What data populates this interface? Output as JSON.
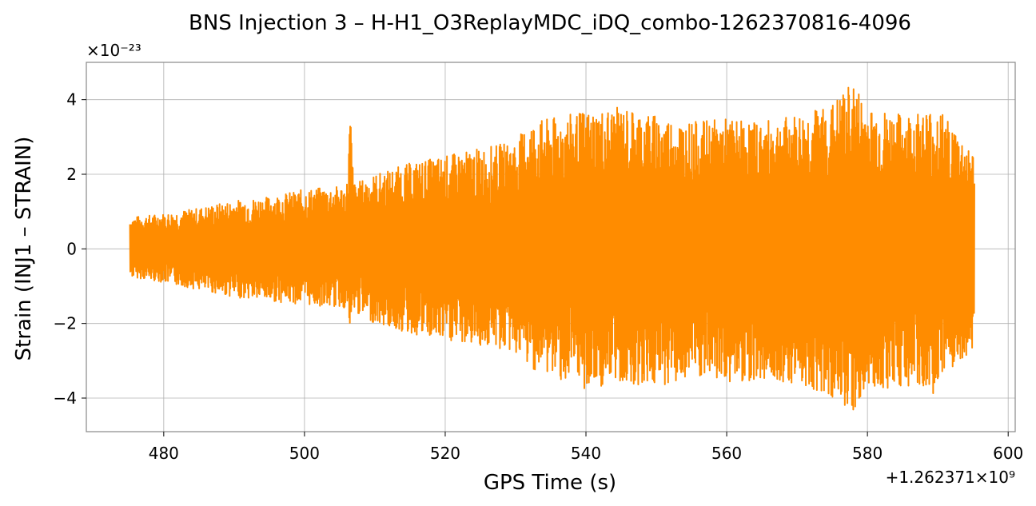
{
  "chart_data": {
    "type": "line",
    "title": "BNS Injection 3 – H-H1_O3ReplayMDC_iDQ_combo-1262370816-4096",
    "xlabel": "GPS Time (s)",
    "ylabel": "Strain (INJ1 – STRAIN)",
    "y_multiplier_label": "×10⁻²³",
    "x_offset_label": "+1.262371×10⁹",
    "xlim": [
      469,
      601
    ],
    "ylim": [
      -4.9,
      5.0
    ],
    "x_ticks": [
      480,
      500,
      520,
      540,
      560,
      580,
      600
    ],
    "x_tick_labels": [
      "480",
      "500",
      "520",
      "540",
      "560",
      "580",
      "600"
    ],
    "y_ticks": [
      -4,
      -2,
      0,
      2,
      4
    ],
    "y_tick_labels": [
      "−4",
      "−2",
      "0",
      "2",
      "4"
    ],
    "grid": true,
    "series": [
      {
        "color": "#ff8c00",
        "x_range": [
          475.2,
          595.2
        ],
        "envelope": {
          "x": [
            475.2,
            480,
            485,
            490,
            495,
            500,
            506,
            506.5,
            507,
            510,
            515,
            520,
            525,
            530,
            532,
            535,
            540,
            545,
            550,
            555,
            560,
            565,
            570,
            575,
            578,
            580,
            585,
            590,
            595.2
          ],
          "upper": [
            0.85,
            0.95,
            1.1,
            1.3,
            1.4,
            1.6,
            1.7,
            3.8,
            1.75,
            2.0,
            2.3,
            2.5,
            2.7,
            2.9,
            3.4,
            3.5,
            3.7,
            3.8,
            3.6,
            3.4,
            3.5,
            3.4,
            3.6,
            3.9,
            4.5,
            3.8,
            3.6,
            3.8,
            2.55
          ],
          "lower": [
            -0.75,
            -0.9,
            -1.1,
            -1.3,
            -1.4,
            -1.5,
            -1.6,
            -2.3,
            -1.7,
            -2.0,
            -2.3,
            -2.5,
            -2.6,
            -2.8,
            -3.2,
            -3.4,
            -3.8,
            -3.6,
            -3.7,
            -3.5,
            -3.6,
            -3.5,
            -3.6,
            -4.0,
            -4.4,
            -3.8,
            -3.7,
            -3.9,
            -2.6
          ]
        }
      }
    ]
  }
}
